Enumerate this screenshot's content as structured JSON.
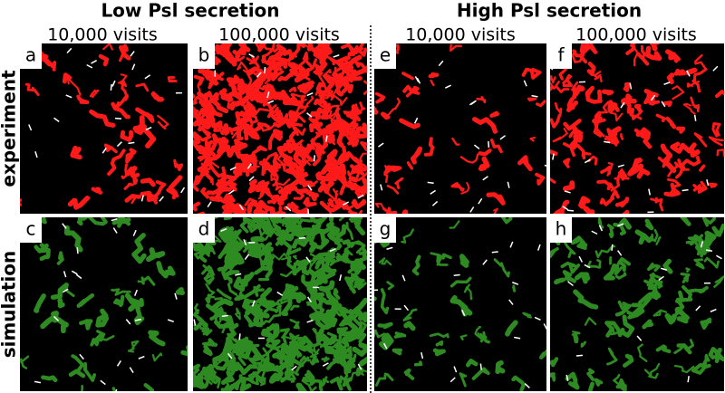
{
  "header": {
    "groups": [
      {
        "title": "Low Psl secretion",
        "columns": [
          "10,000 visits",
          "100,000 visits"
        ]
      },
      {
        "title": "High Psl secretion",
        "columns": [
          "10,000 visits",
          "100,000 visits"
        ]
      }
    ]
  },
  "rows": [
    "experiment",
    "simulation"
  ],
  "panels": [
    [
      "a",
      "b",
      "e",
      "f"
    ],
    [
      "c",
      "d",
      "g",
      "h"
    ]
  ]
}
